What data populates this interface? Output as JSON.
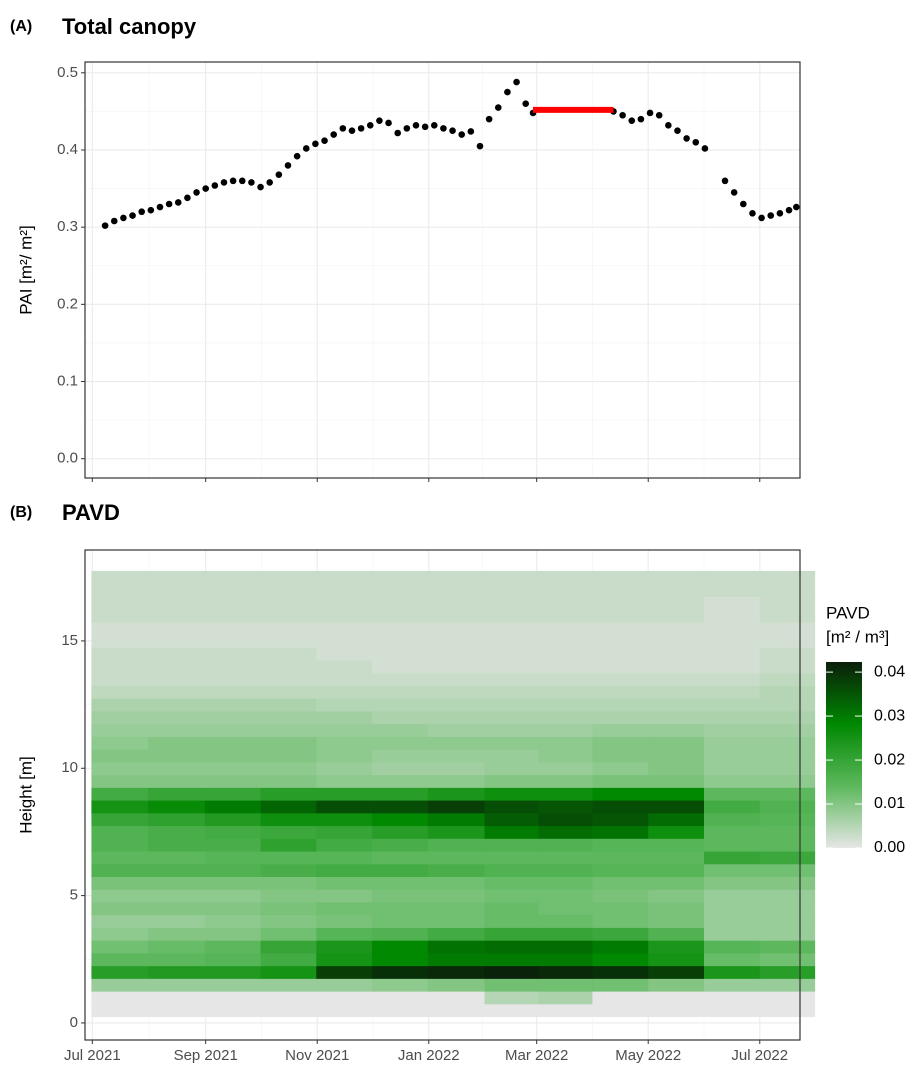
{
  "chart_data": [
    {
      "type": "scatter",
      "tag": "(A)",
      "title": "Total canopy",
      "y_label": "PAI [m²/ m²]",
      "xlim": [
        "2021-06-27",
        "2022-07-23"
      ],
      "ylim": [
        -0.025,
        0.514
      ],
      "xticks": [
        "2021-07-01",
        "2021-09-01",
        "2021-11-01",
        "2022-01-01",
        "2022-03-01",
        "2022-05-01",
        "2022-07-01"
      ],
      "yticks": [
        {
          "value": 0,
          "label": "0.0"
        },
        0.1,
        0.2,
        0.3,
        0.4,
        0.5
      ],
      "grid": true,
      "series": [
        {
          "color": "#000000",
          "mode": "points",
          "x": [
            "2021-07-08",
            "2021-07-13",
            "2021-07-18",
            "2021-07-23",
            "2021-07-28",
            "2021-08-02",
            "2021-08-07",
            "2021-08-12",
            "2021-08-17",
            "2021-08-22",
            "2021-08-27",
            "2021-09-01",
            "2021-09-06",
            "2021-09-11",
            "2021-09-16",
            "2021-09-21",
            "2021-09-26",
            "2021-10-01",
            "2021-10-06",
            "2021-10-11",
            "2021-10-16",
            "2021-10-21",
            "2021-10-26",
            "2021-10-31",
            "2021-11-05",
            "2021-11-10",
            "2021-11-15",
            "2021-11-20",
            "2021-11-25",
            "2021-11-30",
            "2021-12-05",
            "2021-12-10",
            "2021-12-15",
            "2021-12-20",
            "2021-12-25",
            "2021-12-30",
            "2022-01-04",
            "2022-01-09",
            "2022-01-14",
            "2022-01-19",
            "2022-01-24",
            "2022-01-29",
            "2022-02-03",
            "2022-02-08",
            "2022-02-13",
            "2022-02-18",
            "2022-02-23",
            "2022-02-27",
            "2022-04-12",
            "2022-04-17",
            "2022-04-22",
            "2022-04-27",
            "2022-05-02",
            "2022-05-07",
            "2022-05-12",
            "2022-05-17",
            "2022-05-22",
            "2022-05-27",
            "2022-06-01",
            "2022-06-12",
            "2022-06-17",
            "2022-06-22",
            "2022-06-27",
            "2022-07-02",
            "2022-07-07",
            "2022-07-12",
            "2022-07-17",
            "2022-07-21"
          ],
          "values": [
            0.302,
            0.308,
            0.312,
            0.315,
            0.32,
            0.322,
            0.326,
            0.33,
            0.332,
            0.338,
            0.345,
            0.35,
            0.354,
            0.358,
            0.36,
            0.36,
            0.358,
            0.352,
            0.358,
            0.368,
            0.38,
            0.392,
            0.402,
            0.408,
            0.412,
            0.42,
            0.428,
            0.425,
            0.428,
            0.432,
            0.438,
            0.435,
            0.422,
            0.428,
            0.432,
            0.43,
            0.432,
            0.428,
            0.425,
            0.42,
            0.424,
            0.405,
            0.44,
            0.455,
            0.475,
            0.488,
            0.46,
            0.448,
            0.45,
            0.445,
            0.438,
            0.44,
            0.448,
            0.445,
            0.432,
            0.425,
            0.415,
            0.41,
            0.402,
            0.36,
            0.345,
            0.33,
            0.318,
            0.312,
            0.315,
            0.318,
            0.322,
            0.326
          ]
        },
        {
          "color": "#ff0000",
          "mode": "line",
          "x": [
            "2022-02-27",
            "2022-04-12"
          ],
          "values": [
            0.452,
            0.452
          ]
        }
      ]
    },
    {
      "type": "heatmap",
      "tag": "(B)",
      "title": "PAVD",
      "y_label": "Height [m]",
      "legend_title": [
        "PAVD",
        "[m² / m³]"
      ],
      "xlim": [
        "2021-06-27",
        "2022-07-23"
      ],
      "ylim": [
        -0.67,
        18.57
      ],
      "xticks": [
        {
          "value": "2021-07-01",
          "label": "Jul 2021"
        },
        {
          "value": "2021-09-01",
          "label": "Sep 2021"
        },
        {
          "value": "2021-11-01",
          "label": "Nov 2021"
        },
        {
          "value": "2022-01-01",
          "label": "Jan 2022"
        },
        {
          "value": "2022-03-01",
          "label": "Mar 2022"
        },
        {
          "value": "2022-05-01",
          "label": "May 2022"
        },
        {
          "value": "2022-07-01",
          "label": "Jul 2022"
        }
      ],
      "yticks": [
        0,
        5,
        10,
        15
      ],
      "zlim": [
        0,
        0.0423
      ],
      "zticks": [
        {
          "value": 0,
          "label": "0.00"
        },
        0.01,
        0.02,
        0.03,
        0.04
      ],
      "colors": [
        "#e6e6e6",
        "#5cb85c",
        "#008800",
        "#0a1f0a"
      ],
      "x": [
        "2021-07-16",
        "2021-08-16",
        "2021-09-16",
        "2021-10-16",
        "2021-11-16",
        "2021-12-16",
        "2022-01-16",
        "2022-02-16",
        "2022-03-16",
        "2022-04-16",
        "2022-05-16",
        "2022-06-16",
        "2022-07-16"
      ],
      "y": [
        0.5,
        1,
        1.5,
        2,
        2.5,
        3,
        3.5,
        4,
        4.5,
        5,
        5.5,
        6,
        6.5,
        7,
        7.5,
        8,
        8.5,
        9,
        9.5,
        10,
        10.5,
        11,
        11.5,
        12,
        12.5,
        13,
        13.5,
        14,
        14.5,
        15,
        15.5,
        16,
        16.5,
        17,
        17.5
      ],
      "z": [
        [
          0,
          0,
          0,
          0,
          0,
          0,
          0,
          0,
          0,
          0,
          0,
          0,
          0
        ],
        [
          0,
          0,
          0,
          0,
          0,
          0,
          0,
          0.005,
          0.006,
          0,
          0,
          0,
          0
        ],
        [
          0.008,
          0.008,
          0.008,
          0.008,
          0.008,
          0.009,
          0.01,
          0.012,
          0.012,
          0.012,
          0.01,
          0.008,
          0.008
        ],
        [
          0.022,
          0.023,
          0.023,
          0.025,
          0.038,
          0.04,
          0.041,
          0.042,
          0.041,
          0.04,
          0.038,
          0.024,
          0.022
        ],
        [
          0.014,
          0.014,
          0.015,
          0.018,
          0.025,
          0.028,
          0.03,
          0.03,
          0.03,
          0.028,
          0.025,
          0.013,
          0.012
        ],
        [
          0.012,
          0.013,
          0.014,
          0.02,
          0.024,
          0.028,
          0.031,
          0.032,
          0.032,
          0.03,
          0.024,
          0.015,
          0.014
        ],
        [
          0.009,
          0.01,
          0.01,
          0.012,
          0.015,
          0.016,
          0.018,
          0.02,
          0.02,
          0.019,
          0.016,
          0.008,
          0.008
        ],
        [
          0.008,
          0.008,
          0.009,
          0.01,
          0.011,
          0.012,
          0.012,
          0.013,
          0.013,
          0.012,
          0.011,
          0.008,
          0.008
        ],
        [
          0.01,
          0.01,
          0.01,
          0.011,
          0.012,
          0.012,
          0.012,
          0.013,
          0.012,
          0.012,
          0.011,
          0.008,
          0.008
        ],
        [
          0.009,
          0.009,
          0.009,
          0.01,
          0.01,
          0.011,
          0.011,
          0.012,
          0.012,
          0.011,
          0.01,
          0.008,
          0.008
        ],
        [
          0.011,
          0.011,
          0.011,
          0.011,
          0.012,
          0.012,
          0.012,
          0.013,
          0.013,
          0.012,
          0.012,
          0.01,
          0.01
        ],
        [
          0.016,
          0.016,
          0.016,
          0.017,
          0.018,
          0.018,
          0.017,
          0.016,
          0.016,
          0.015,
          0.015,
          0.012,
          0.012
        ],
        [
          0.014,
          0.014,
          0.015,
          0.015,
          0.015,
          0.014,
          0.014,
          0.014,
          0.014,
          0.014,
          0.014,
          0.02,
          0.019
        ],
        [
          0.016,
          0.017,
          0.017,
          0.021,
          0.018,
          0.017,
          0.016,
          0.016,
          0.016,
          0.015,
          0.015,
          0.014,
          0.014
        ],
        [
          0.016,
          0.017,
          0.018,
          0.019,
          0.02,
          0.022,
          0.024,
          0.03,
          0.032,
          0.031,
          0.026,
          0.014,
          0.014
        ],
        [
          0.02,
          0.021,
          0.023,
          0.026,
          0.026,
          0.028,
          0.03,
          0.034,
          0.036,
          0.035,
          0.032,
          0.016,
          0.015
        ],
        [
          0.025,
          0.027,
          0.03,
          0.033,
          0.036,
          0.036,
          0.038,
          0.036,
          0.035,
          0.036,
          0.036,
          0.018,
          0.016
        ],
        [
          0.018,
          0.02,
          0.02,
          0.022,
          0.022,
          0.022,
          0.024,
          0.026,
          0.026,
          0.028,
          0.028,
          0.014,
          0.014
        ],
        [
          0.01,
          0.01,
          0.01,
          0.01,
          0.009,
          0.009,
          0.009,
          0.01,
          0.01,
          0.011,
          0.011,
          0.009,
          0.009
        ],
        [
          0.009,
          0.009,
          0.009,
          0.009,
          0.008,
          0.007,
          0.007,
          0.008,
          0.008,
          0.009,
          0.01,
          0.008,
          0.008
        ],
        [
          0.01,
          0.01,
          0.01,
          0.01,
          0.009,
          0.008,
          0.008,
          0.008,
          0.009,
          0.01,
          0.01,
          0.008,
          0.008
        ],
        [
          0.009,
          0.01,
          0.01,
          0.01,
          0.009,
          0.009,
          0.009,
          0.009,
          0.009,
          0.01,
          0.01,
          0.008,
          0.008
        ],
        [
          0.008,
          0.008,
          0.008,
          0.008,
          0.008,
          0.008,
          0.007,
          0.007,
          0.007,
          0.008,
          0.008,
          0.007,
          0.007
        ],
        [
          0.007,
          0.007,
          0.007,
          0.007,
          0.007,
          0.006,
          0.006,
          0.006,
          0.006,
          0.006,
          0.006,
          0.006,
          0.006
        ],
        [
          0.006,
          0.006,
          0.006,
          0.006,
          0.005,
          0.005,
          0.005,
          0.005,
          0.005,
          0.005,
          0.005,
          0.005,
          0.005
        ],
        [
          0.004,
          0.004,
          0.004,
          0.004,
          0.004,
          0.004,
          0.004,
          0.004,
          0.004,
          0.004,
          0.004,
          0.004,
          0.005
        ],
        [
          0.003,
          0.003,
          0.003,
          0.003,
          0.003,
          0.003,
          0.003,
          0.003,
          0.003,
          0.003,
          0.003,
          0.003,
          0.004
        ],
        [
          0.003,
          0.003,
          0.003,
          0.003,
          0.003,
          0.002,
          0.002,
          0.002,
          0.002,
          0.002,
          0.002,
          0.002,
          0.003
        ],
        [
          0.003,
          0.003,
          0.003,
          0.003,
          0.002,
          0.002,
          0.002,
          0.002,
          0.002,
          0.002,
          0.002,
          0.002,
          0.003
        ],
        [
          0.002,
          0.002,
          0.002,
          0.002,
          0.002,
          0.002,
          0.002,
          0.002,
          0.002,
          0.002,
          0.002,
          0.002,
          0.002
        ],
        [
          0.002,
          0.002,
          0.002,
          0.002,
          0.002,
          0.002,
          0.002,
          0.002,
          0.002,
          0.002,
          0.002,
          0.002,
          0.002
        ],
        [
          0.003,
          0.003,
          0.003,
          0.003,
          0.003,
          0.003,
          0.003,
          0.003,
          0.003,
          0.003,
          0.003,
          0.002,
          0.003
        ],
        [
          0.003,
          0.003,
          0.003,
          0.003,
          0.003,
          0.003,
          0.003,
          0.003,
          0.003,
          0.003,
          0.003,
          0.002,
          0.003
        ],
        [
          0.003,
          0.003,
          0.003,
          0.003,
          0.003,
          0.003,
          0.003,
          0.003,
          0.003,
          0.003,
          0.003,
          0.003,
          0.003
        ],
        [
          0.003,
          0.003,
          0.003,
          0.003,
          0.003,
          0.003,
          0.003,
          0.003,
          0.003,
          0.003,
          0.003,
          0.003,
          0.003
        ]
      ]
    }
  ]
}
